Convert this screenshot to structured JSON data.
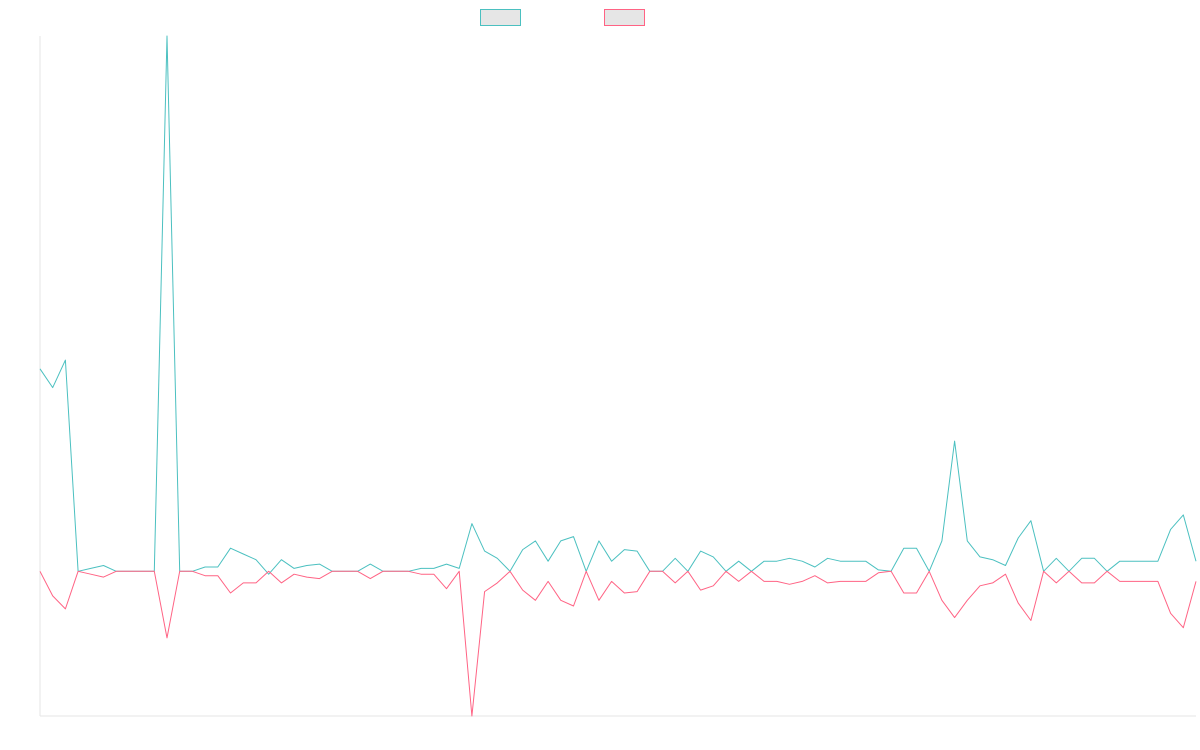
{
  "chart_data": {
    "type": "line",
    "x_count": 92,
    "ylim": [
      -100,
      370
    ],
    "grid": false,
    "legend_placement": "top-center",
    "series": [
      {
        "color": "#4bc0c0",
        "fill": "#e6e6e6",
        "values": [
          140,
          127,
          146,
          0,
          2,
          4,
          0,
          0,
          0,
          0,
          370,
          0,
          0,
          3,
          3,
          16,
          12,
          8,
          -2,
          8,
          2,
          4,
          5,
          0,
          0,
          0,
          5,
          0,
          0,
          0,
          2,
          2,
          5,
          2,
          33,
          14,
          9,
          0,
          15,
          21,
          7,
          21,
          24,
          0,
          21,
          7,
          15,
          14,
          0,
          0,
          9,
          0,
          14,
          10,
          0,
          7,
          0,
          7,
          7,
          9,
          7,
          3,
          9,
          7,
          7,
          7,
          1,
          0,
          16,
          16,
          0,
          21,
          90,
          21,
          10,
          8,
          4,
          23,
          35,
          0,
          9,
          0,
          9,
          9,
          0,
          7,
          7,
          7,
          7,
          29,
          39,
          7
        ]
      },
      {
        "color": "#ff6384",
        "fill": "#e6e6e6",
        "values": [
          0,
          -17,
          -26,
          0,
          -2,
          -4,
          0,
          0,
          0,
          0,
          -46,
          0,
          0,
          -3,
          -3,
          -15,
          -8,
          -8,
          0,
          -8,
          -2,
          -4,
          -5,
          0,
          0,
          0,
          -5,
          0,
          0,
          0,
          -2,
          -2,
          -12,
          0,
          -100,
          -14,
          -8,
          0,
          -13,
          -20,
          -7,
          -20,
          -24,
          0,
          -20,
          -7,
          -15,
          -14,
          0,
          0,
          -8,
          0,
          -13,
          -10,
          0,
          -7,
          0,
          -7,
          -7,
          -9,
          -7,
          -3,
          -8,
          -7,
          -7,
          -7,
          -1,
          0,
          -15,
          -15,
          0,
          -20,
          -32,
          -20,
          -10,
          -8,
          -2,
          -22,
          -34,
          0,
          -8,
          0,
          -8,
          -8,
          0,
          -7,
          -7,
          -7,
          -7,
          -29,
          -39,
          -7
        ]
      }
    ]
  }
}
